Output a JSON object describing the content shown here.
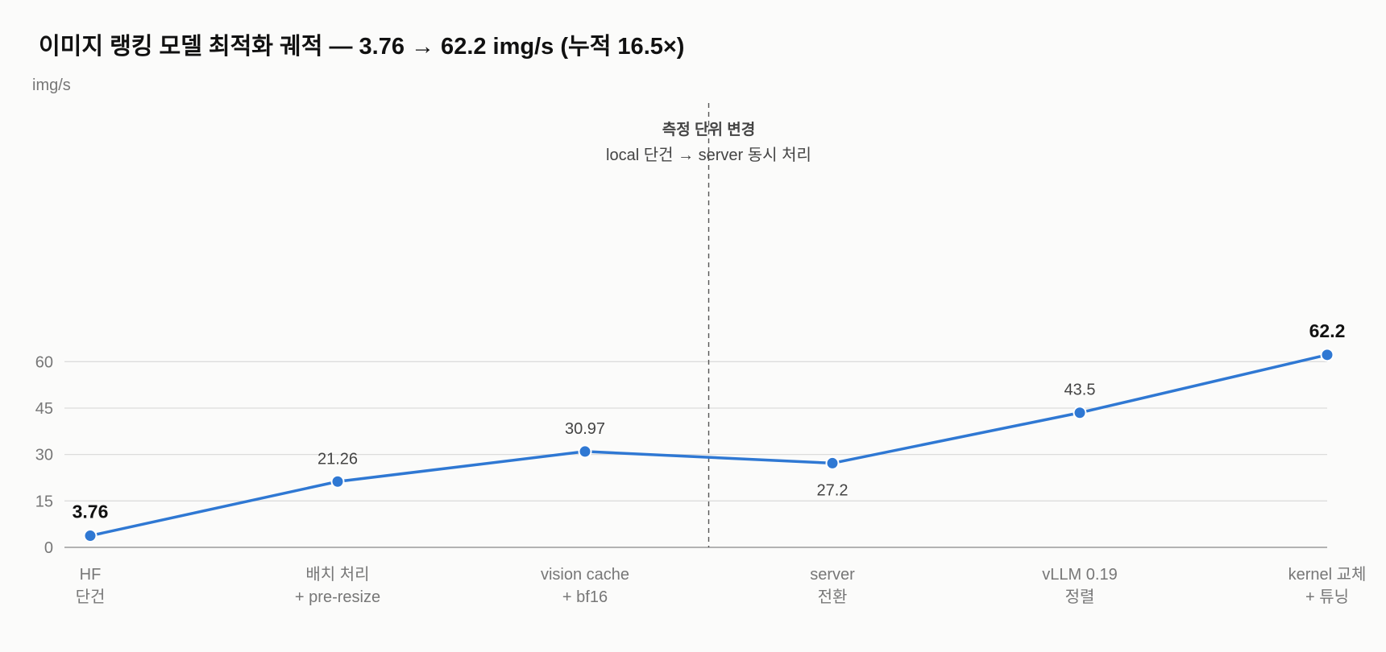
{
  "title": "이미지 랭킹 모델 최적화 궤적 — 3.76 → 62.2 img/s (누적 16.5×)",
  "colors": {
    "line": "#2f78d3",
    "grid": "#dcdcdc",
    "axis": "#999999",
    "divider": "#555555"
  },
  "chart_data": {
    "type": "line",
    "title": "이미지 랭킹 모델 최적화 궤적 — 3.76 → 62.2 img/s (누적 16.5×)",
    "ylabel": "img/s",
    "xlabel": "",
    "ylim": [
      0,
      72
    ],
    "yticks": [
      0,
      15,
      30,
      45,
      60
    ],
    "grid": true,
    "categories": [
      [
        "HF",
        "단건"
      ],
      [
        "배치 처리",
        "+ pre-resize"
      ],
      [
        "vision cache",
        "+ bf16"
      ],
      [
        "server",
        "전환"
      ],
      [
        "vLLM 0.19",
        "정렬"
      ],
      [
        "kernel 교체",
        "+ 튜닝"
      ]
    ],
    "series": [
      {
        "values": [
          3.76,
          21.26,
          30.97,
          27.2,
          43.5,
          62.2
        ],
        "labels": [
          "3.76",
          "21.26",
          "30.97",
          "27.2",
          "43.5",
          "62.2"
        ]
      }
    ],
    "annotation": {
      "title": "측정 단위 변경",
      "subtitle": "local 단건 → server 동시 처리",
      "between": [
        2,
        3
      ]
    }
  }
}
